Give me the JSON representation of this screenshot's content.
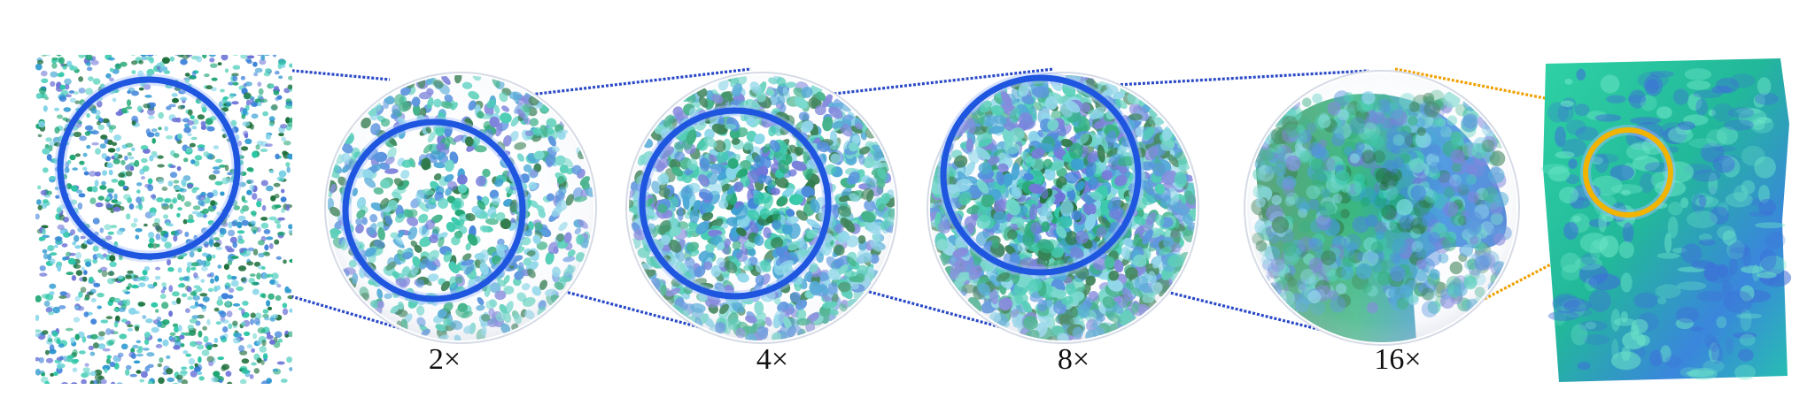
{
  "figure": {
    "colors": {
      "connector_blue": "#2848c8",
      "ring_blue": "#1f56e0",
      "connector_orange": "#f0a000",
      "ring_orange": "#f2b400",
      "point_palette": [
        "#19a36f",
        "#2cc6a6",
        "#3a7fd9",
        "#7ed2e8",
        "#1c6e3a",
        "#6a70d6",
        "#5fd3c4",
        "#2f9ad0"
      ]
    },
    "labels": {
      "zoom_2x": "2×",
      "zoom_4x": "4×",
      "zoom_8x": "8×",
      "zoom_16x": "16×"
    }
  }
}
